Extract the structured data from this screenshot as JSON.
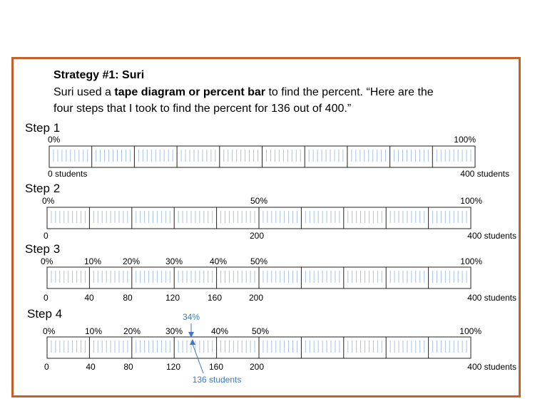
{
  "heading": "Strategy #1: Suri",
  "intro": {
    "line1_pre": "Suri used a ",
    "line1_bold": "tape diagram or percent bar",
    "line1_post": " to find the percent. “Here are the",
    "line2": "four steps that I took to find the percent for 136 out of 400.”"
  },
  "steps": [
    {
      "title": "Step 1",
      "percent_labels": [
        "0%",
        "100%"
      ],
      "student_labels": [
        "0 students",
        "400 students"
      ]
    },
    {
      "title": "Step 2",
      "percent_labels": [
        "0%",
        "50%",
        "100%"
      ],
      "student_labels": [
        "0",
        "200",
        "400 students"
      ]
    },
    {
      "title": "Step 3",
      "percent_labels": [
        "0%",
        "10%",
        "20%",
        "30%",
        "40%",
        "50%",
        "100%"
      ],
      "student_labels": [
        "0",
        "40",
        "80",
        "120",
        "160",
        "200",
        "400 students"
      ]
    },
    {
      "title": "Step 4",
      "percent_labels": [
        "0%",
        "10%",
        "20%",
        "30%",
        "40%",
        "50%",
        "100%"
      ],
      "student_labels": [
        "0",
        "40",
        "80",
        "120",
        "160",
        "200",
        "400 students"
      ],
      "marker_percent": "34%",
      "marker_students": "136 students",
      "marker_value": 136,
      "total": 400
    }
  ],
  "colors": {
    "border": "#c0622a",
    "marker": "#3a78c9",
    "minor_tick": "#a9c4e4"
  }
}
